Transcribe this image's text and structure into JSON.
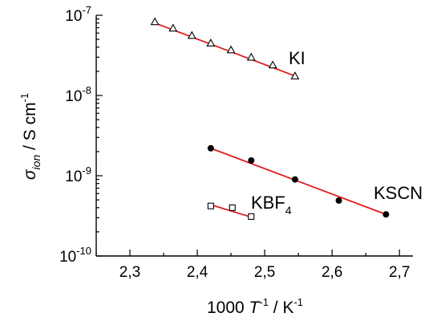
{
  "chart_data": {
    "type": "scatter",
    "xlabel": {
      "prefix": "1000 ",
      "var": "T",
      "var_sup": "-1",
      "unit": " / K",
      "unit_sup": "-1"
    },
    "ylabel": {
      "var": "σ",
      "var_sub": "ion",
      "unit": " / S cm",
      "unit_sup": "-1"
    },
    "xlim": [
      2.25,
      2.72
    ],
    "ylim": [
      1e-10,
      1e-07
    ],
    "yscale": "log",
    "x_ticks": [
      "2,3",
      "2,4",
      "2,5",
      "2,6",
      "2,7"
    ],
    "x_tick_values": [
      2.3,
      2.4,
      2.5,
      2.6,
      2.7
    ],
    "y_ticks": [
      {
        "value": 1e-10,
        "base": "10",
        "exp": "-10"
      },
      {
        "value": 1e-09,
        "base": "10",
        "exp": "-9"
      },
      {
        "value": 1e-08,
        "base": "10",
        "exp": "-8"
      },
      {
        "value": 1e-07,
        "base": "10",
        "exp": "-7"
      }
    ],
    "grid": false,
    "fit_color": "#e31a1c",
    "series": [
      {
        "name": "KI",
        "label_text": "KI",
        "label_sub": "",
        "marker": "open-triangle",
        "x": [
          2.337,
          2.364,
          2.392,
          2.42,
          2.45,
          2.48,
          2.512,
          2.545
        ],
        "y": [
          8.3e-08,
          6.9e-08,
          5.6e-08,
          4.5e-08,
          3.7e-08,
          3e-08,
          2.4e-08,
          1.75e-08
        ],
        "fit": {
          "x": [
            2.337,
            2.545
          ],
          "y": [
            8e-08,
            1.75e-08
          ]
        }
      },
      {
        "name": "KSCN",
        "label_text": "KSCN",
        "label_sub": "",
        "marker": "filled-circle",
        "x": [
          2.42,
          2.48,
          2.545,
          2.61,
          2.68
        ],
        "y": [
          2.2e-09,
          1.55e-09,
          9e-10,
          4.9e-10,
          3.3e-10
        ],
        "fit": {
          "x": [
            2.42,
            2.68
          ],
          "y": [
            2.2e-09,
            3.3e-10
          ]
        }
      },
      {
        "name": "KBF4",
        "label_text": "KBF",
        "label_sub": "4",
        "marker": "open-square",
        "x": [
          2.42,
          2.452,
          2.48
        ],
        "y": [
          4.2e-10,
          4e-10,
          3.1e-10
        ],
        "fit": {
          "x": [
            2.42,
            2.48
          ],
          "y": [
            4.35e-10,
            3.05e-10
          ]
        }
      }
    ]
  }
}
